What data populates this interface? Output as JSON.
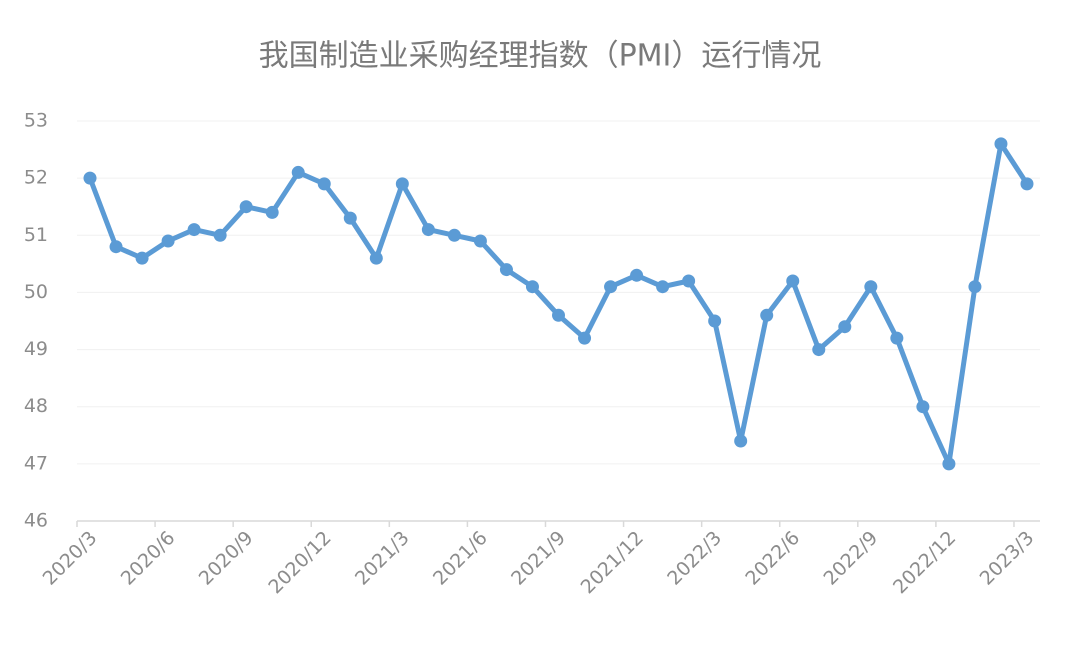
{
  "chart_data": {
    "type": "line",
    "title": "我国制造业采购经理指数（PMI）运行情况",
    "categories": [
      "2020/3",
      null,
      null,
      "2020/6",
      null,
      null,
      "2020/9",
      null,
      null,
      "2020/12",
      null,
      null,
      "2021/3",
      null,
      null,
      "2021/6",
      null,
      null,
      "2021/9",
      null,
      null,
      "2021/12",
      null,
      null,
      "2022/3",
      null,
      null,
      "2022/6",
      null,
      null,
      "2022/9",
      null,
      null,
      "2022/12",
      null,
      null,
      "2023/3"
    ],
    "series": [
      {
        "name": "PMI",
        "color": "#5b9bd5",
        "values": [
          52.0,
          50.8,
          50.6,
          50.9,
          51.1,
          51.0,
          51.5,
          51.4,
          52.1,
          51.9,
          51.3,
          50.6,
          51.9,
          51.1,
          51.0,
          50.9,
          50.4,
          50.1,
          49.6,
          49.2,
          50.1,
          50.3,
          50.1,
          50.2,
          49.5,
          47.4,
          49.6,
          50.2,
          49.0,
          49.4,
          50.1,
          49.2,
          48.0,
          47.0,
          50.1,
          52.6,
          51.9
        ]
      }
    ],
    "ylim": [
      46,
      53
    ],
    "yticks": [
      46,
      47,
      48,
      49,
      50,
      51,
      52,
      53
    ],
    "grid": true
  }
}
